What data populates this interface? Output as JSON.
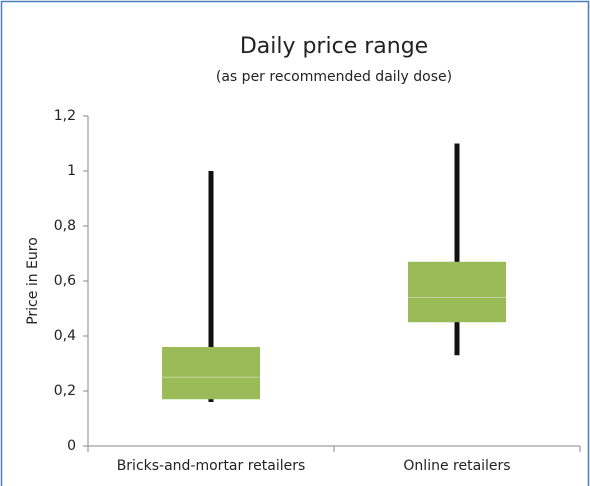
{
  "chart_data": {
    "type": "box",
    "title": "Daily price range",
    "subtitle": "(as per recommended daily dose)",
    "y_label": "Price in Euro",
    "categories": [
      "Bricks-and-mortar retailers",
      "Online retailers"
    ],
    "boxes": [
      {
        "min": 0.16,
        "q1": 0.17,
        "median": 0.25,
        "q3": 0.36,
        "max": 1.0
      },
      {
        "min": 0.33,
        "q1": 0.45,
        "median": 0.54,
        "q3": 0.67,
        "max": 1.1
      }
    ],
    "color": "#9bbb59",
    "median_color": "#c3d69b",
    "whisker_color": "#111111",
    "ylim": [
      0,
      1.2
    ],
    "yticks": [
      0,
      {
        "value": 0.2,
        "label": "0,2"
      },
      {
        "value": 0.4,
        "label": "0,4"
      },
      {
        "value": 0.6,
        "label": "0,6"
      },
      {
        "value": 0.8,
        "label": "0,8"
      },
      1,
      {
        "value": 1.2,
        "label": "1,2"
      }
    ],
    "grid": false
  }
}
